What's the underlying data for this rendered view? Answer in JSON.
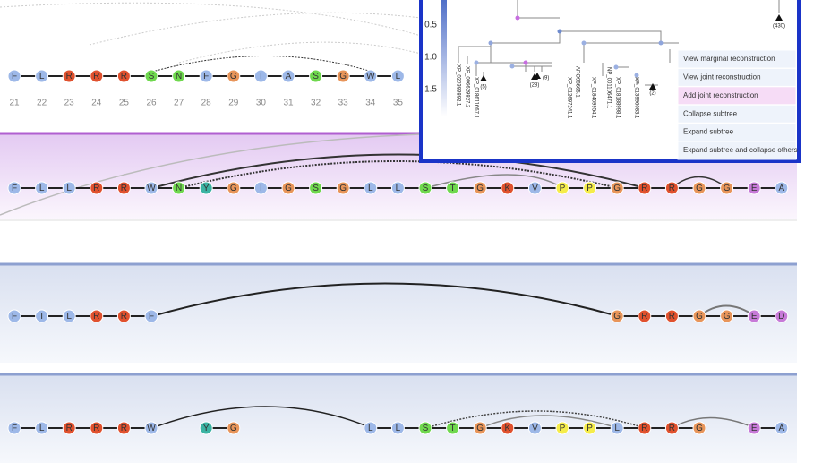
{
  "residue_colors": {
    "F": "#9db8e8",
    "L": "#9db8e8",
    "I": "#9db8e8",
    "W": "#9db8e8",
    "V": "#9db8e8",
    "A": "#9db8e8",
    "R": "#e0512e",
    "K": "#e0512e",
    "S": "#6fd84e",
    "T": "#6fd84e",
    "N": "#6fd84e",
    "G": "#e8955a",
    "Y": "#3bb3a3",
    "P": "#f5ec4a",
    "E": "#c77ad8",
    "D": "#c77ad8"
  },
  "top_track": {
    "residues": [
      "F",
      "L",
      "R",
      "R",
      "R",
      "S",
      "N",
      "F",
      "G",
      "I",
      "A",
      "S",
      "G",
      "W",
      "L"
    ],
    "positions": [
      21,
      22,
      23,
      24,
      25,
      26,
      27,
      28,
      29,
      30,
      31,
      32,
      33,
      34,
      35
    ]
  },
  "tree": {
    "axis_ticks": [
      0.5,
      {
        "value": 1,
        "label": "1.0"
      },
      1.5
    ],
    "leaves": [
      "XP_020383892.1",
      "XP_006629827.2",
      "XP_018611667.1",
      "(5)",
      "(28)",
      "(9)",
      "XP_012697241.1",
      "ARO98665.1",
      "XP_018409954.1",
      "NP_001106471.1",
      "XP_018188998.1",
      "XP_013996083.1",
      "(2)",
      "(430)"
    ]
  },
  "context_menu": {
    "items": [
      "View marginal reconstruction",
      "View joint reconstruction",
      "Add joint reconstruction",
      "Collapse subtree",
      "Expand subtree",
      "Expand subtree and collapse others"
    ]
  },
  "tracks": [
    {
      "residues": [
        "F",
        "L",
        "L",
        "R",
        "R",
        "W",
        "N",
        "Y",
        "G",
        "I",
        "G",
        "S",
        "G",
        "L",
        "L",
        "S",
        "T",
        "G",
        "K",
        "V",
        "P",
        "P",
        "G",
        "R",
        "R",
        "G",
        "G",
        "E",
        "A"
      ]
    },
    {
      "residues": [
        "F",
        "I",
        "L",
        "R",
        "R",
        "F",
        null,
        null,
        null,
        null,
        null,
        null,
        null,
        null,
        null,
        null,
        null,
        null,
        null,
        null,
        null,
        null,
        "G",
        "R",
        "R",
        "G",
        "G",
        "E",
        "D"
      ]
    },
    {
      "residues": [
        "F",
        "L",
        "R",
        "R",
        "R",
        "W",
        null,
        "Y",
        "G",
        null,
        null,
        null,
        null,
        "L",
        "L",
        "S",
        "T",
        "G",
        "K",
        "V",
        "P",
        "P",
        "L",
        "R",
        "R",
        "G",
        null,
        "E",
        "A"
      ]
    }
  ]
}
